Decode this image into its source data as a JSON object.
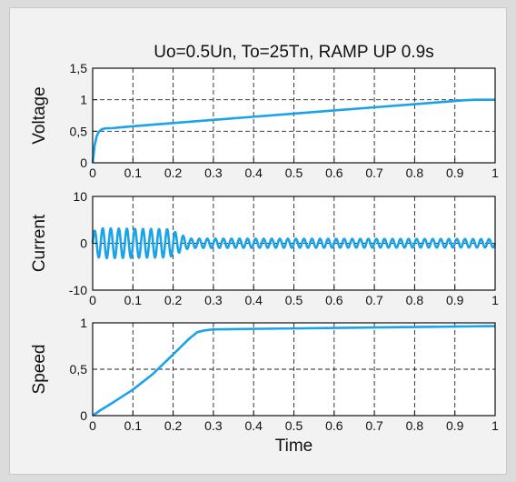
{
  "chart_data": [
    {
      "type": "line",
      "title": "Uo=0.5Un, To=25Tn, RAMP UP 0.9s",
      "ylabel": "Voltage",
      "xlabel": "",
      "xlim": [
        0,
        1
      ],
      "ylim": [
        0,
        1.5
      ],
      "xticks": [
        "0",
        "0.1",
        "0.2",
        "0.3",
        "0.4",
        "0.5",
        "0.6",
        "0.7",
        "0.8",
        "0.9",
        "1"
      ],
      "yticks": [
        "0",
        "0,5",
        "1",
        "1,5"
      ],
      "grid": true,
      "series": [
        {
          "color": "#1aa3e8",
          "x": [
            0,
            0.005,
            0.01,
            0.015,
            0.02,
            0.025,
            0.03,
            0.05,
            0.1,
            0.2,
            0.3,
            0.4,
            0.5,
            0.6,
            0.7,
            0.8,
            0.9,
            0.92,
            0.95,
            1.0
          ],
          "y": [
            0,
            0.28,
            0.42,
            0.49,
            0.52,
            0.535,
            0.545,
            0.55,
            0.58,
            0.63,
            0.68,
            0.73,
            0.78,
            0.83,
            0.88,
            0.93,
            0.98,
            0.99,
            1.0,
            1.0
          ]
        }
      ]
    },
    {
      "type": "line",
      "title": "",
      "ylabel": "Current",
      "xlabel": "",
      "xlim": [
        0,
        1
      ],
      "ylim": [
        -10,
        10
      ],
      "xticks": [
        "0",
        "0.1",
        "0.2",
        "0.3",
        "0.4",
        "0.5",
        "0.6",
        "0.7",
        "0.8",
        "0.9",
        "1"
      ],
      "yticks": [
        "-10",
        "0",
        "10"
      ],
      "grid": true,
      "series": [
        {
          "color": "#1aa3e8",
          "oscillation": {
            "frequency_hz": 50,
            "envelope_t": [
              0,
              0.02,
              0.19,
              0.24,
              1.0
            ],
            "envelope_amp": [
              2.5,
              3.2,
              3.0,
              1.0,
              0.9
            ]
          }
        }
      ]
    },
    {
      "type": "line",
      "title": "",
      "ylabel": "Speed",
      "xlabel": "Time",
      "xlim": [
        0,
        1
      ],
      "ylim": [
        0,
        1
      ],
      "xticks": [
        "0",
        "0.1",
        "0.2",
        "0.3",
        "0.4",
        "0.5",
        "0.6",
        "0.7",
        "0.8",
        "0.9",
        "1"
      ],
      "yticks": [
        "0",
        "0,5",
        "1"
      ],
      "grid": true,
      "series": [
        {
          "color": "#1aa3e8",
          "x": [
            0,
            0.02,
            0.05,
            0.1,
            0.15,
            0.2,
            0.24,
            0.26,
            0.28,
            0.3,
            0.4,
            0.5,
            0.7,
            0.9,
            1.0
          ],
          "y": [
            0,
            0.06,
            0.14,
            0.28,
            0.45,
            0.66,
            0.83,
            0.9,
            0.92,
            0.93,
            0.935,
            0.94,
            0.95,
            0.96,
            0.965
          ]
        }
      ]
    }
  ]
}
